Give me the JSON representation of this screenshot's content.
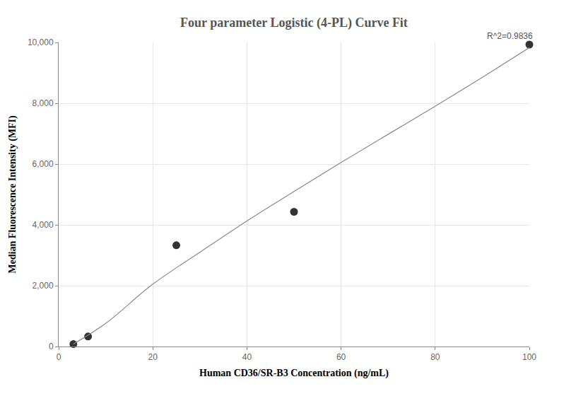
{
  "chart_data": {
    "type": "scatter",
    "title": "Four parameter Logistic (4-PL) Curve Fit",
    "x_label": "Human CD36/SR-B3 Concentration (ng/mL)",
    "y_label": "Median Fluorescence Intensity (MFI)",
    "annotations": [
      "R^2=0.9836"
    ],
    "series": [
      {
        "type": "scatter",
        "marker": "circle",
        "color": "#333333",
        "x": [
          3.125,
          6.25,
          25,
          50,
          100
        ],
        "values": [
          80,
          330,
          3330,
          4430,
          9930
        ]
      },
      {
        "type": "line",
        "line_style": "solid",
        "color": "#888888",
        "x": [
          3.125,
          10,
          20,
          30,
          40,
          50,
          60,
          70,
          80,
          90,
          100
        ],
        "values": [
          80,
          760,
          2050,
          3100,
          4130,
          5100,
          6050,
          6980,
          7900,
          8850,
          9830
        ]
      }
    ],
    "xlim": [
      0,
      100
    ],
    "xticks": [
      0,
      20,
      40,
      60,
      80,
      100
    ],
    "ylim": [
      0,
      10000
    ],
    "yticks": [
      0,
      {
        "value": 2000,
        "label": "2,000"
      },
      {
        "value": 4000,
        "label": "4,000"
      },
      {
        "value": 6000,
        "label": "6,000"
      },
      {
        "value": 8000,
        "label": "8,000"
      },
      {
        "value": 10000,
        "label": "10,000"
      }
    ],
    "grid": true
  }
}
